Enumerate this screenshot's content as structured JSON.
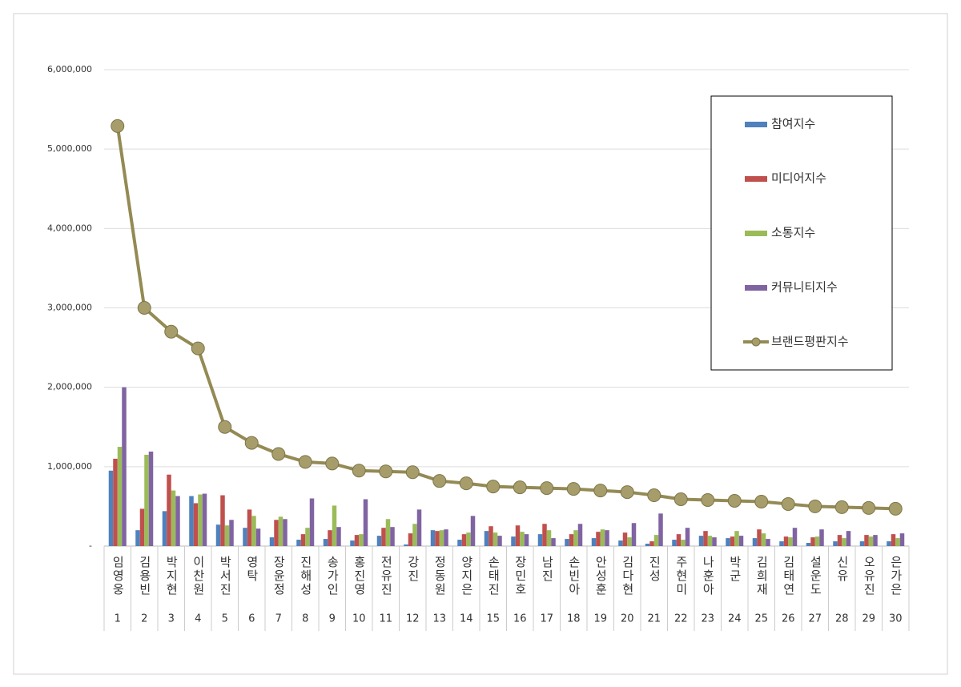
{
  "chart_data": {
    "type": "bar-line",
    "categories": [
      "임영웅",
      "김용빈",
      "박지현",
      "이찬원",
      "박서진",
      "영탁",
      "장윤정",
      "진해성",
      "송가인",
      "홍진영",
      "전유진",
      "강진",
      "정동원",
      "양지은",
      "손태진",
      "장민호",
      "남진",
      "손빈아",
      "안성훈",
      "김다현",
      "진성",
      "주현미",
      "나훈아",
      "박군",
      "김희재",
      "김태연",
      "설운도",
      "신유",
      "오유진",
      "은가은"
    ],
    "ranks": [
      "1",
      "2",
      "3",
      "4",
      "5",
      "6",
      "7",
      "8",
      "9",
      "10",
      "11",
      "12",
      "13",
      "14",
      "15",
      "16",
      "17",
      "18",
      "19",
      "20",
      "21",
      "22",
      "23",
      "24",
      "25",
      "26",
      "27",
      "28",
      "29",
      "30"
    ],
    "series": [
      {
        "name": "참여지수",
        "type": "bar",
        "color": "#4f81bd",
        "values": [
          950000,
          200000,
          440000,
          630000,
          270000,
          230000,
          110000,
          80000,
          90000,
          70000,
          130000,
          20000,
          200000,
          80000,
          190000,
          120000,
          150000,
          90000,
          100000,
          70000,
          30000,
          80000,
          130000,
          100000,
          100000,
          60000,
          40000,
          60000,
          60000,
          60000
        ]
      },
      {
        "name": "미디어지수",
        "type": "bar",
        "color": "#c0504d",
        "values": [
          1100000,
          470000,
          900000,
          540000,
          640000,
          460000,
          330000,
          150000,
          200000,
          140000,
          230000,
          160000,
          190000,
          150000,
          250000,
          260000,
          280000,
          150000,
          180000,
          170000,
          60000,
          150000,
          190000,
          120000,
          210000,
          120000,
          110000,
          140000,
          140000,
          150000
        ]
      },
      {
        "name": "소통지수",
        "type": "bar",
        "color": "#9bbb59",
        "values": [
          1250000,
          1150000,
          700000,
          650000,
          260000,
          380000,
          370000,
          230000,
          510000,
          150000,
          340000,
          280000,
          200000,
          170000,
          170000,
          180000,
          200000,
          200000,
          210000,
          110000,
          140000,
          80000,
          130000,
          190000,
          160000,
          110000,
          120000,
          100000,
          120000,
          100000
        ]
      },
      {
        "name": "커뮤니티지수",
        "type": "bar",
        "color": "#8064a2",
        "values": [
          2000000,
          1190000,
          630000,
          660000,
          330000,
          220000,
          340000,
          600000,
          240000,
          590000,
          240000,
          460000,
          210000,
          380000,
          130000,
          150000,
          100000,
          280000,
          200000,
          290000,
          410000,
          230000,
          110000,
          130000,
          90000,
          230000,
          210000,
          190000,
          140000,
          160000
        ]
      },
      {
        "name": "브랜드평판지수",
        "type": "line",
        "color": "#948a54",
        "values": [
          5290000,
          3000000,
          2700000,
          2490000,
          1500000,
          1300000,
          1160000,
          1060000,
          1040000,
          950000,
          940000,
          930000,
          820000,
          790000,
          750000,
          740000,
          730000,
          720000,
          700000,
          680000,
          640000,
          590000,
          580000,
          570000,
          560000,
          530000,
          500000,
          490000,
          480000,
          470000
        ]
      }
    ],
    "ylim": [
      0,
      6000000
    ],
    "yticks": [
      {
        "value": 0,
        "label": "-"
      },
      {
        "value": 1000000,
        "label": "1,000,000"
      },
      {
        "value": 2000000,
        "label": "2,000,000"
      },
      {
        "value": 3000000,
        "label": "3,000,000"
      },
      {
        "value": 4000000,
        "label": "4,000,000"
      },
      {
        "value": 5000000,
        "label": "5,000,000"
      },
      {
        "value": 6000000,
        "label": "6,000,000"
      }
    ],
    "grid": true,
    "legend": "upper-right"
  }
}
